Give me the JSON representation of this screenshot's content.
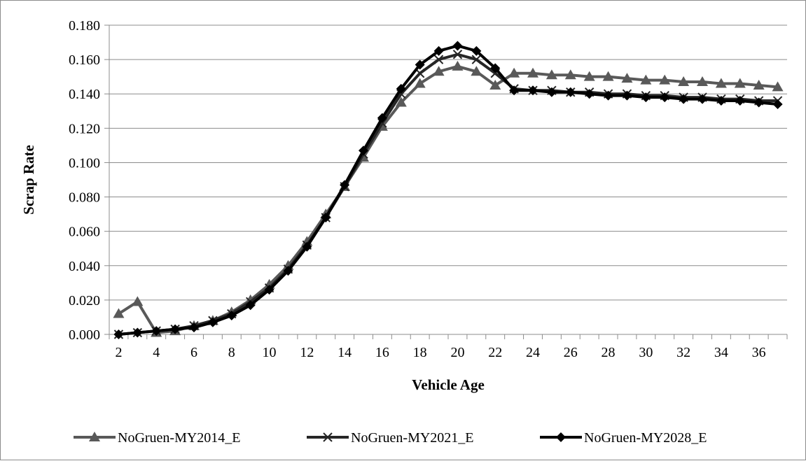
{
  "chart_data": {
    "type": "line",
    "title": "",
    "xlabel": "Vehicle Age",
    "ylabel": "Scrap Rate",
    "xlim": [
      2,
      37
    ],
    "ylim": [
      0,
      0.18
    ],
    "y_ticks": [
      "0.000",
      "0.020",
      "0.040",
      "0.060",
      "0.080",
      "0.100",
      "0.120",
      "0.140",
      "0.160",
      "0.180"
    ],
    "x_tick_labels": [
      "2",
      "4",
      "6",
      "8",
      "10",
      "12",
      "14",
      "16",
      "18",
      "20",
      "22",
      "24",
      "26",
      "28",
      "30",
      "32",
      "34",
      "36"
    ],
    "grid": "horizontal",
    "legend_position": "bottom",
    "x": [
      2,
      3,
      4,
      5,
      6,
      7,
      8,
      9,
      10,
      11,
      12,
      13,
      14,
      15,
      16,
      17,
      18,
      19,
      20,
      21,
      22,
      23,
      24,
      25,
      26,
      27,
      28,
      29,
      30,
      31,
      32,
      33,
      34,
      35,
      36,
      37
    ],
    "series": [
      {
        "name": "NoGruen-MY2014_E",
        "color": "#595959",
        "marker": "triangle",
        "values": [
          0.012,
          0.019,
          0.001,
          0.002,
          0.005,
          0.008,
          0.013,
          0.02,
          0.029,
          0.04,
          0.054,
          0.07,
          0.086,
          0.103,
          0.121,
          0.135,
          0.146,
          0.153,
          0.156,
          0.153,
          0.145,
          0.152,
          0.152,
          0.151,
          0.151,
          0.15,
          0.15,
          0.149,
          0.148,
          0.148,
          0.147,
          0.147,
          0.146,
          0.146,
          0.145,
          0.144
        ]
      },
      {
        "name": "NoGruen-MY2021_E",
        "color": "#262626",
        "marker": "x",
        "values": [
          0.0,
          0.001,
          0.002,
          0.003,
          0.005,
          0.008,
          0.012,
          0.019,
          0.027,
          0.038,
          0.052,
          0.068,
          0.086,
          0.105,
          0.123,
          0.14,
          0.152,
          0.16,
          0.163,
          0.16,
          0.152,
          0.143,
          0.142,
          0.142,
          0.141,
          0.141,
          0.14,
          0.14,
          0.139,
          0.139,
          0.138,
          0.138,
          0.137,
          0.137,
          0.136,
          0.136
        ]
      },
      {
        "name": "NoGruen-MY2028_E",
        "color": "#000000",
        "marker": "diamond",
        "values": [
          0.0,
          0.001,
          0.002,
          0.003,
          0.004,
          0.007,
          0.011,
          0.017,
          0.026,
          0.037,
          0.051,
          0.068,
          0.087,
          0.107,
          0.126,
          0.143,
          0.157,
          0.165,
          0.168,
          0.165,
          0.155,
          0.142,
          0.142,
          0.141,
          0.141,
          0.14,
          0.139,
          0.139,
          0.138,
          0.138,
          0.137,
          0.137,
          0.136,
          0.136,
          0.135,
          0.134
        ]
      }
    ]
  }
}
